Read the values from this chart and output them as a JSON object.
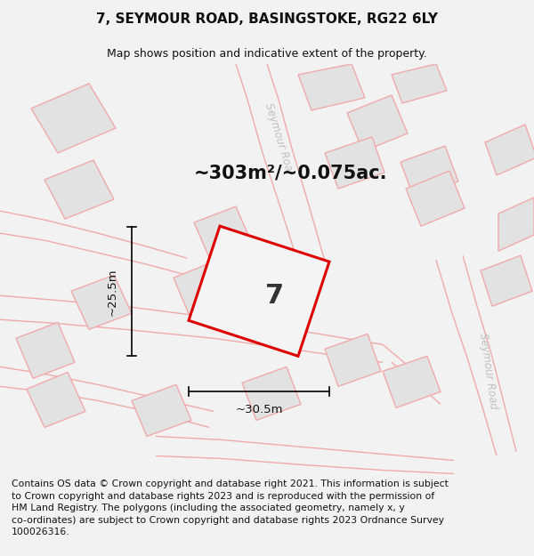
{
  "title": "7, SEYMOUR ROAD, BASINGSTOKE, RG22 6LY",
  "subtitle": "Map shows position and indicative extent of the property.",
  "area_text": "~303m²/~0.075ac.",
  "label_number": "7",
  "dim_width": "~30.5m",
  "dim_height": "~25.5m",
  "footer_lines": [
    "Contains OS data © Crown copyright and database right 2021. This information is subject",
    "to Crown copyright and database rights 2023 and is reproduced with the permission of",
    "HM Land Registry. The polygons (including the associated geometry, namely x, y",
    "co-ordinates) are subject to Crown copyright and database rights 2023 Ordnance Survey",
    "100026316."
  ],
  "bg_color": "#f2f2f2",
  "map_bg": "#ffffff",
  "plot_color": "#dd0000",
  "building_stroke": "#f0aaaa",
  "building_fill": "#e2e2e2",
  "road_line_color": "#f0aaaa",
  "road_label_color": "#c0c0c0",
  "title_fontsize": 11,
  "subtitle_fontsize": 9,
  "footer_fontsize": 7.8
}
